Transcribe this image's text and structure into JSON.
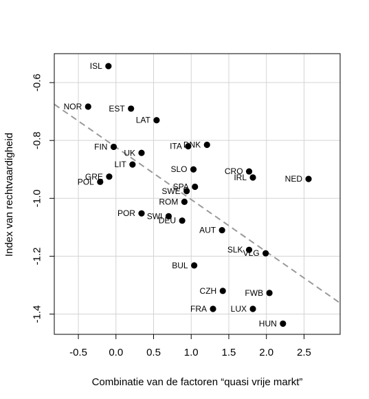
{
  "chart_data": {
    "type": "scatter",
    "title": "",
    "xlabel": "Combinatie van de factoren “quasi vrije markt”",
    "ylabel": "Index van rechtvaardigheid",
    "xlim": [
      -0.82,
      2.98
    ],
    "ylim": [
      -1.47,
      -0.5
    ],
    "xticks": [
      -0.5,
      0.0,
      0.5,
      1.0,
      1.5,
      2.0,
      2.5
    ],
    "xtick_labels": [
      "-0.5",
      "0.0",
      "0.5",
      "1.0",
      "1.5",
      "2.0",
      "2.5"
    ],
    "yticks": [
      -0.6,
      -0.8,
      -1.0,
      -1.2,
      -1.4
    ],
    "ytick_labels": [
      "-0.6",
      "-0.8",
      "-1.0",
      "-1.2",
      "-1.4"
    ],
    "grid": true,
    "point_color": "#000000",
    "trend_color": "#999999",
    "trendline": {
      "x": [
        -0.82,
        2.98
      ],
      "y": [
        -0.675,
        -1.362
      ]
    },
    "points": [
      {
        "label": "ISL",
        "x": -0.1,
        "y": -0.543
      },
      {
        "label": "NOR",
        "x": -0.37,
        "y": -0.683
      },
      {
        "label": "EST",
        "x": 0.2,
        "y": -0.69
      },
      {
        "label": "LAT",
        "x": 0.54,
        "y": -0.73
      },
      {
        "label": "FIN",
        "x": -0.03,
        "y": -0.822
      },
      {
        "label": "UK",
        "x": 0.34,
        "y": -0.843
      },
      {
        "label": "ITA",
        "x": 0.96,
        "y": -0.82
      },
      {
        "label": "DNK",
        "x": 1.21,
        "y": -0.815
      },
      {
        "label": "LIT",
        "x": 0.22,
        "y": -0.883
      },
      {
        "label": "SLO",
        "x": 1.03,
        "y": -0.9
      },
      {
        "label": "CRO",
        "x": 1.77,
        "y": -0.907
      },
      {
        "label": "IRL",
        "x": 1.82,
        "y": -0.928
      },
      {
        "label": "NED",
        "x": 2.56,
        "y": -0.933
      },
      {
        "label": "GRE",
        "x": -0.09,
        "y": -0.925
      },
      {
        "label": "POL",
        "x": -0.21,
        "y": -0.943
      },
      {
        "label": "SPA",
        "x": 1.05,
        "y": -0.96
      },
      {
        "label": "SWE",
        "x": 0.94,
        "y": -0.975
      },
      {
        "label": "ROM",
        "x": 0.91,
        "y": -1.012
      },
      {
        "label": "POR",
        "x": 0.34,
        "y": -1.052
      },
      {
        "label": "SWI",
        "x": 0.7,
        "y": -1.062
      },
      {
        "label": "DEU",
        "x": 0.88,
        "y": -1.077
      },
      {
        "label": "AUT",
        "x": 1.41,
        "y": -1.11
      },
      {
        "label": "SLK",
        "x": 1.77,
        "y": -1.178
      },
      {
        "label": "VLG",
        "x": 1.99,
        "y": -1.19
      },
      {
        "label": "BUL",
        "x": 1.04,
        "y": -1.232
      },
      {
        "label": "CZH",
        "x": 1.42,
        "y": -1.32
      },
      {
        "label": "FWB",
        "x": 2.04,
        "y": -1.327
      },
      {
        "label": "FRA",
        "x": 1.29,
        "y": -1.382
      },
      {
        "label": "LUX",
        "x": 1.82,
        "y": -1.382
      },
      {
        "label": "HUN",
        "x": 2.22,
        "y": -1.433
      }
    ]
  }
}
